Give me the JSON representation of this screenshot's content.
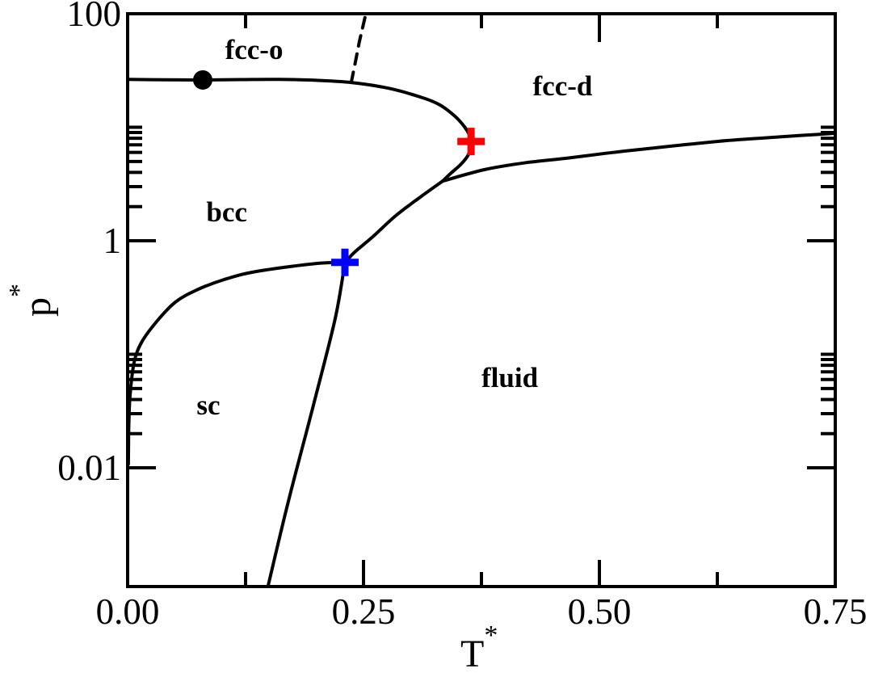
{
  "figure": {
    "background": "#ffffff",
    "foreground": "#000000"
  },
  "chart_data": {
    "type": "line",
    "title": "",
    "xlabel": "T",
    "xlabel_sup": "*",
    "ylabel": "p",
    "ylabel_sup": "*",
    "x_axis": {
      "scale": "linear",
      "lim": [
        0,
        0.75
      ],
      "tick_labels": [
        {
          "v": 0,
          "label": "0.00"
        },
        {
          "v": 0.25,
          "label": "0.25"
        },
        {
          "v": 0.5,
          "label": "0.50"
        },
        {
          "v": 0.75,
          "label": "0.75"
        }
      ],
      "major_ticks": [
        0.25,
        0.5
      ],
      "minor_ticks": [
        0.125,
        0.375,
        0.625
      ],
      "top_major_ticks": [
        0.5
      ],
      "top_minor_ticks": [
        0.125,
        0.375,
        0.625
      ]
    },
    "y_axis": {
      "scale": "log",
      "lim": [
        0.0009,
        100
      ],
      "tick_labels": [
        {
          "v": 100,
          "label": "100"
        },
        {
          "v": 1,
          "label": "1"
        },
        {
          "v": 0.01,
          "label": "0.01"
        }
      ],
      "major_ticks": [
        100,
        1,
        0.01
      ],
      "minor_ticks": [
        10,
        9,
        8,
        7,
        6,
        5,
        4,
        3,
        2,
        0.1,
        0.09,
        0.08,
        0.07,
        0.06,
        0.05,
        0.04,
        0.03,
        0.02
      ]
    },
    "line_color": "#000000",
    "series": [
      {
        "name": "fcc-o-bcc-boundary",
        "style": "solid",
        "points": [
          [
            0.0,
            26.4
          ],
          [
            0.04,
            26.2
          ],
          [
            0.08,
            26.1
          ],
          [
            0.12,
            26.3
          ],
          [
            0.16,
            26.4
          ],
          [
            0.2,
            25.9
          ],
          [
            0.237,
            24.8
          ],
          [
            0.276,
            22.1
          ],
          [
            0.31,
            18.5
          ],
          [
            0.33,
            15.9
          ],
          [
            0.346,
            12.7
          ],
          [
            0.357,
            10.1
          ],
          [
            0.363,
            8.3
          ],
          [
            0.3645,
            7.2
          ],
          [
            0.361,
            5.7
          ],
          [
            0.353,
            4.7
          ],
          [
            0.342,
            3.9
          ],
          [
            0.334,
            3.36
          ]
        ]
      },
      {
        "name": "melting-line-fcc-d",
        "style": "solid",
        "points": [
          [
            0.334,
            3.36
          ],
          [
            0.378,
            4.23
          ],
          [
            0.42,
            4.85
          ],
          [
            0.464,
            5.32
          ],
          [
            0.507,
            5.9
          ],
          [
            0.55,
            6.47
          ],
          [
            0.593,
            7.05
          ],
          [
            0.635,
            7.63
          ],
          [
            0.693,
            8.25
          ],
          [
            0.75,
            8.85
          ]
        ]
      },
      {
        "name": "melting-line-bcc",
        "style": "solid",
        "points": [
          [
            0.334,
            3.36
          ],
          [
            0.31,
            2.42
          ],
          [
            0.284,
            1.66
          ],
          [
            0.259,
            1.07
          ],
          [
            0.241,
            0.8
          ],
          [
            0.2303,
            0.645
          ]
        ]
      },
      {
        "name": "sc-bcc-boundary",
        "style": "solid",
        "points": [
          [
            0.2303,
            0.645
          ],
          [
            0.199,
            0.63
          ],
          [
            0.136,
            0.536
          ],
          [
            0.102,
            0.455
          ],
          [
            0.073,
            0.368
          ],
          [
            0.0505,
            0.288
          ],
          [
            0.03,
            0.191
          ],
          [
            0.0146,
            0.127
          ],
          [
            0.0068,
            0.084
          ],
          [
            0.0026,
            0.0435
          ],
          [
            0.0012,
            0.0227
          ],
          [
            0.0008,
            0.0108
          ]
        ]
      },
      {
        "name": "sublimation-line",
        "style": "solid",
        "points": [
          [
            0.2303,
            0.645
          ],
          [
            0.22,
            0.207
          ],
          [
            0.197,
            0.0359
          ],
          [
            0.17,
            0.00494
          ],
          [
            0.149,
            0.00092
          ]
        ]
      },
      {
        "name": "fcc-o-fcc-d-boundary",
        "style": "dashed",
        "points": [
          [
            0.237,
            24.8
          ],
          [
            0.2415,
            38
          ],
          [
            0.2455,
            56
          ],
          [
            0.249,
            75
          ],
          [
            0.2525,
            100
          ]
        ]
      }
    ],
    "markers": [
      {
        "name": "critical-point-dot",
        "shape": "circle",
        "color": "#000000",
        "T": 0.0796,
        "p": 26.1
      },
      {
        "name": "bcc-terminus-cross",
        "shape": "plus",
        "color": "#ff0000",
        "T": 0.364,
        "p": 7.5
      },
      {
        "name": "sc-bcc-fluid-triple-cross",
        "shape": "plus",
        "color": "#0000ff",
        "T": 0.2303,
        "p": 0.645
      }
    ],
    "region_labels": [
      {
        "text": "fcc-o",
        "T": 0.134,
        "p": 48.6
      },
      {
        "text": "fcc-d",
        "T": 0.461,
        "p": 23.3
      },
      {
        "text": "bcc",
        "T": 0.105,
        "p": 1.8
      },
      {
        "text": "sc",
        "T": 0.0856,
        "p": 0.0359
      },
      {
        "text": "fluid",
        "T": 0.405,
        "p": 0.0627
      }
    ]
  }
}
